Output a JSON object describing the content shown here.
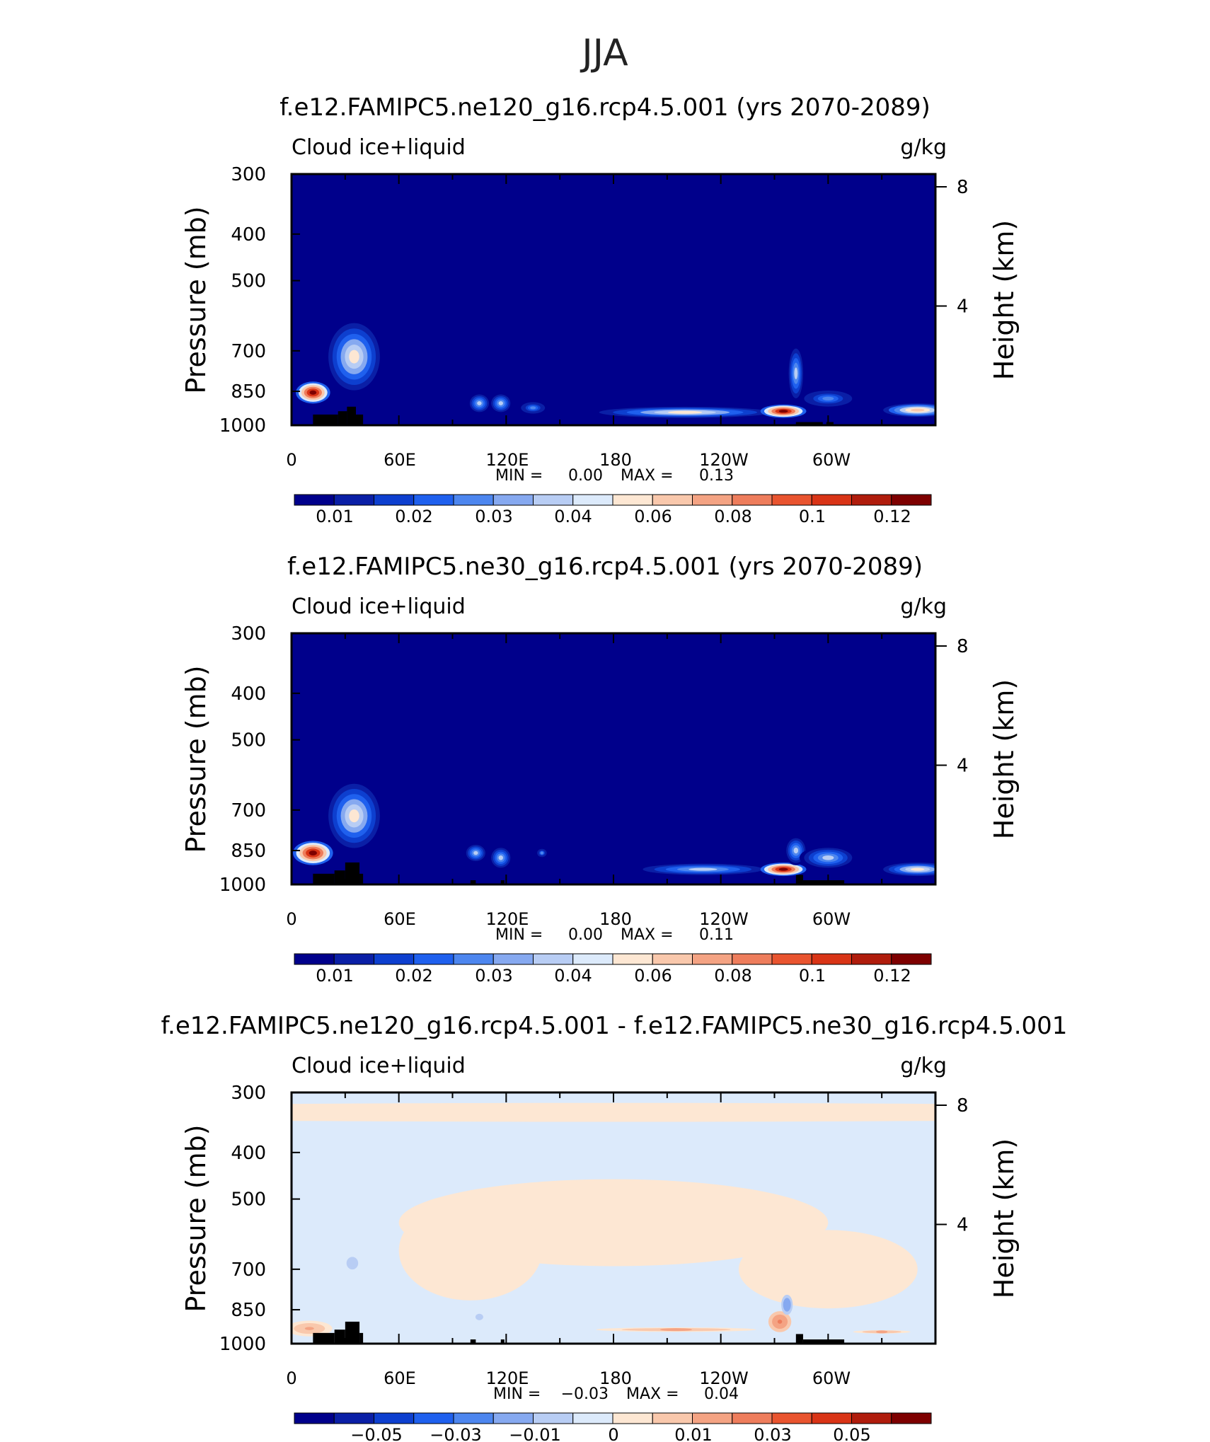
{
  "figure_title": "JJA",
  "colors": {
    "seq": [
      "#00008b",
      "#0a1fa6",
      "#0d3fcf",
      "#1f60ee",
      "#4d86ef",
      "#86a9f0",
      "#b8cdf4",
      "#dceafb",
      "#fde7d3",
      "#f9c8ac",
      "#f4a383",
      "#ee7d5c",
      "#e9542f",
      "#d93416",
      "#b01c0c",
      "#7e0000"
    ],
    "terrain": "#000000"
  },
  "chart_data": [
    {
      "type": "heatmap",
      "title": "f.e12.FAMIPC5.ne120_g16.rcp4.5.001 (yrs 2070-2089)",
      "left_label": "Cloud ice+liquid",
      "right_label": "g/kg",
      "ylabel": "Pressure (mb)",
      "ylabel_right": "Height (km)",
      "yticks": [
        "300",
        "400",
        "500",
        "700",
        "850",
        "1000"
      ],
      "yticks_right": [
        "8",
        "4"
      ],
      "xticks": [
        "0",
        "60E",
        "120E",
        "180",
        "120W",
        "60W"
      ],
      "stats": {
        "min_label": "MIN =",
        "min": "0.00",
        "max_label": "MAX =",
        "max": "0.13"
      },
      "colorbar": {
        "ticks": [
          "0.01",
          "0.02",
          "0.03",
          "0.04",
          "0.06",
          "0.08",
          "0.1",
          "0.12"
        ]
      },
      "features": [
        {
          "lon": 12,
          "p": 855,
          "w": 6,
          "h": 90,
          "v": 0.12
        },
        {
          "lon": 35,
          "p": 720,
          "w": 9,
          "h": 230,
          "v": 0.04
        },
        {
          "lon": 105,
          "p": 900,
          "w": 4,
          "h": 90,
          "v": 0.03
        },
        {
          "lon": 117,
          "p": 900,
          "w": 4,
          "h": 90,
          "v": 0.03
        },
        {
          "lon": 135,
          "p": 920,
          "w": 5,
          "h": 60,
          "v": 0.02
        },
        {
          "lon": 220,
          "p": 940,
          "w": 30,
          "h": 50,
          "v": 0.04
        },
        {
          "lon": 275,
          "p": 935,
          "w": 8,
          "h": 60,
          "v": 0.12
        },
        {
          "lon": 282,
          "p": 780,
          "w": 3,
          "h": 220,
          "v": 0.03
        },
        {
          "lon": 300,
          "p": 880,
          "w": 10,
          "h": 80,
          "v": 0.02
        },
        {
          "lon": 350,
          "p": 930,
          "w": 12,
          "h": 60,
          "v": 0.05
        }
      ],
      "terrain": [
        {
          "lon0": 12,
          "lon1": 26,
          "p": 950
        },
        {
          "lon0": 26,
          "lon1": 31,
          "p": 935
        },
        {
          "lon0": 31,
          "lon1": 36,
          "p": 915
        },
        {
          "lon0": 36,
          "lon1": 40,
          "p": 950
        },
        {
          "lon0": 282,
          "lon1": 297,
          "p": 985
        },
        {
          "lon0": 299,
          "lon1": 303,
          "p": 985
        }
      ]
    },
    {
      "type": "heatmap",
      "title": "f.e12.FAMIPC5.ne30_g16.rcp4.5.001 (yrs 2070-2089)",
      "left_label": "Cloud ice+liquid",
      "right_label": "g/kg",
      "ylabel": "Pressure (mb)",
      "ylabel_right": "Height (km)",
      "yticks": [
        "300",
        "400",
        "500",
        "700",
        "850",
        "1000"
      ],
      "yticks_right": [
        "8",
        "4"
      ],
      "xticks": [
        "0",
        "60E",
        "120E",
        "180",
        "120W",
        "60W"
      ],
      "stats": {
        "min_label": "MIN =",
        "min": "0.00",
        "max_label": "MAX =",
        "max": "0.11"
      },
      "colorbar": {
        "ticks": [
          "0.01",
          "0.02",
          "0.03",
          "0.04",
          "0.06",
          "0.08",
          "0.1",
          "0.12"
        ]
      },
      "features": [
        {
          "lon": 12,
          "p": 860,
          "w": 7,
          "h": 100,
          "v": 0.11
        },
        {
          "lon": 35,
          "p": 720,
          "w": 9,
          "h": 220,
          "v": 0.04
        },
        {
          "lon": 103,
          "p": 860,
          "w": 4,
          "h": 80,
          "v": 0.03
        },
        {
          "lon": 117,
          "p": 880,
          "w": 4,
          "h": 100,
          "v": 0.03
        },
        {
          "lon": 140,
          "p": 860,
          "w": 2,
          "h": 40,
          "v": 0.02
        },
        {
          "lon": 230,
          "p": 930,
          "w": 25,
          "h": 60,
          "v": 0.03
        },
        {
          "lon": 275,
          "p": 930,
          "w": 8,
          "h": 60,
          "v": 0.11
        },
        {
          "lon": 282,
          "p": 850,
          "w": 4,
          "h": 120,
          "v": 0.03
        },
        {
          "lon": 300,
          "p": 880,
          "w": 10,
          "h": 100,
          "v": 0.03
        },
        {
          "lon": 350,
          "p": 930,
          "w": 12,
          "h": 60,
          "v": 0.04
        }
      ],
      "terrain": [
        {
          "lon0": 12,
          "lon1": 24,
          "p": 950
        },
        {
          "lon0": 24,
          "lon1": 30,
          "p": 935
        },
        {
          "lon0": 30,
          "lon1": 38,
          "p": 900
        },
        {
          "lon0": 38,
          "lon1": 40,
          "p": 950
        },
        {
          "lon0": 100,
          "lon1": 103,
          "p": 980
        },
        {
          "lon0": 117,
          "lon1": 119,
          "p": 980
        },
        {
          "lon0": 282,
          "lon1": 286,
          "p": 955
        },
        {
          "lon0": 286,
          "lon1": 309,
          "p": 980
        }
      ]
    },
    {
      "type": "heatmap",
      "title": "f.e12.FAMIPC5.ne120_g16.rcp4.5.001 - f.e12.FAMIPC5.ne30_g16.rcp4.5.001",
      "left_label": "Cloud ice+liquid",
      "right_label": "g/kg",
      "ylabel": "Pressure (mb)",
      "ylabel_right": "Height (km)",
      "yticks": [
        "300",
        "400",
        "500",
        "700",
        "850",
        "1000"
      ],
      "yticks_right": [
        "8",
        "4"
      ],
      "xticks": [
        "0",
        "60E",
        "120E",
        "180",
        "120W",
        "60W"
      ],
      "stats": {
        "min_label": "MIN =",
        "min": "−0.03",
        "max_label": "MAX =",
        "max": "0.04"
      },
      "colorbar": {
        "ticks": [
          "−0.05",
          "−0.03",
          "−0.01",
          "0",
          "0.01",
          "0.03",
          "0.05"
        ]
      },
      "features": [
        {
          "lon": 10,
          "p": 930,
          "w": 8,
          "h": 70,
          "v": 0.01
        },
        {
          "lon": 34,
          "p": 680,
          "w": 3,
          "h": 60,
          "v": -0.01
        },
        {
          "lon": 105,
          "p": 880,
          "w": 2,
          "h": 40,
          "v": -0.01
        },
        {
          "lon": 215,
          "p": 935,
          "w": 28,
          "h": 20,
          "v": 0.01
        },
        {
          "lon": 273,
          "p": 900,
          "w": 4,
          "h": 90,
          "v": 0.02
        },
        {
          "lon": 277,
          "p": 830,
          "w": 2,
          "h": 80,
          "v": -0.02
        },
        {
          "lon": 330,
          "p": 945,
          "w": 10,
          "h": 15,
          "v": 0.01
        }
      ],
      "terrain": [
        {
          "lon0": 12,
          "lon1": 24,
          "p": 950
        },
        {
          "lon0": 24,
          "lon1": 30,
          "p": 935
        },
        {
          "lon0": 30,
          "lon1": 38,
          "p": 900
        },
        {
          "lon0": 38,
          "lon1": 40,
          "p": 950
        },
        {
          "lon0": 100,
          "lon1": 103,
          "p": 980
        },
        {
          "lon0": 117,
          "lon1": 119,
          "p": 980
        },
        {
          "lon0": 282,
          "lon1": 286,
          "p": 955
        },
        {
          "lon0": 286,
          "lon1": 309,
          "p": 980
        }
      ]
    }
  ]
}
